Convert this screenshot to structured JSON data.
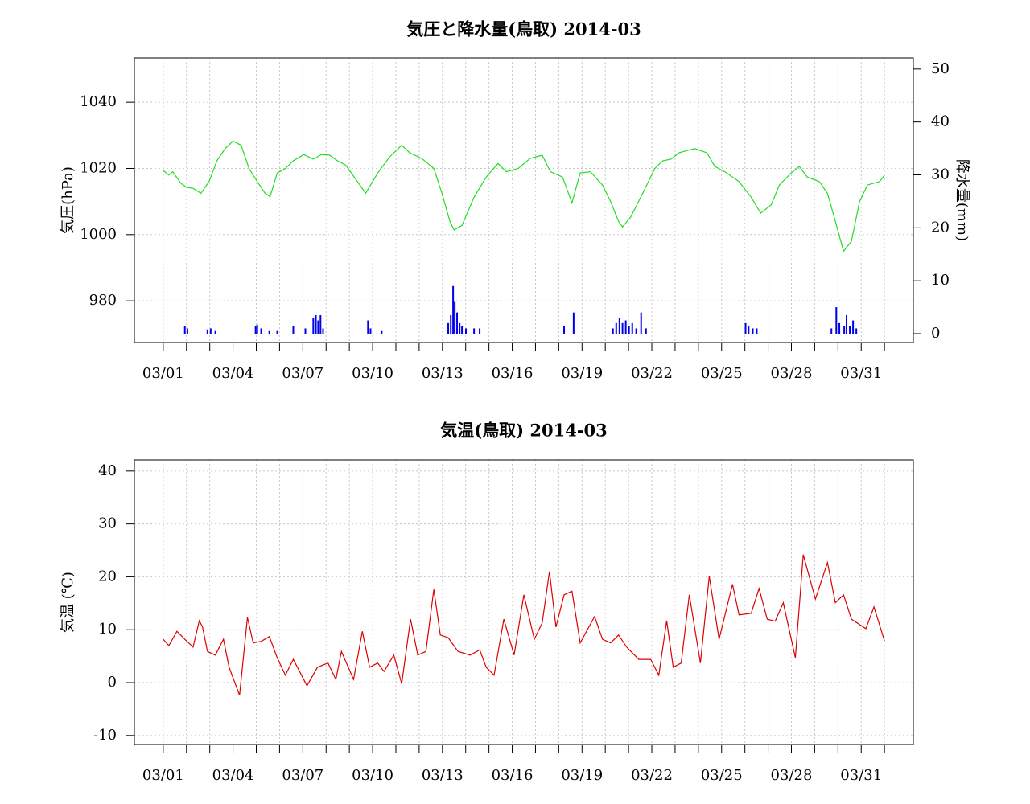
{
  "chart_data": [
    {
      "type": "line",
      "title": "気圧と降水量(鳥取) 2014-03",
      "ylabel": "気圧(hPa)",
      "y2label": "降水量(mm)",
      "xlim": [
        -0.24,
        33.24
      ],
      "xticks": [
        {
          "value": 1,
          "label": "03/01"
        },
        {
          "value": 4,
          "label": "03/04"
        },
        {
          "value": 7,
          "label": "03/07"
        },
        {
          "value": 10,
          "label": "03/10"
        },
        {
          "value": 13,
          "label": "03/13"
        },
        {
          "value": 16,
          "label": "03/16"
        },
        {
          "value": 19,
          "label": "03/19"
        },
        {
          "value": 22,
          "label": "03/22"
        },
        {
          "value": 25,
          "label": "03/25"
        },
        {
          "value": 28,
          "label": "03/28"
        },
        {
          "value": 31,
          "label": "03/31"
        }
      ],
      "xminor_ticks": [
        1,
        2,
        3,
        4,
        5,
        6,
        7,
        8,
        9,
        10,
        11,
        12,
        13,
        14,
        15,
        16,
        17,
        18,
        19,
        20,
        21,
        22,
        23,
        24,
        25,
        26,
        27,
        28,
        29,
        30,
        31,
        32
      ],
      "ylim": [
        967.4,
        1053.4
      ],
      "yticks": [
        980,
        1000,
        1020,
        1040
      ],
      "y2lim": [
        -1.67,
        52.1
      ],
      "y2ticks": [
        0,
        10,
        20,
        30,
        40,
        50
      ],
      "grid": true,
      "series": [
        {
          "name": "気圧",
          "color": "#22dd22",
          "x": [
            1.0,
            1.24,
            1.41,
            1.76,
            2.0,
            2.28,
            2.62,
            2.97,
            3.31,
            3.66,
            4.0,
            4.35,
            4.69,
            5.04,
            5.38,
            5.59,
            5.9,
            6.25,
            6.59,
            7.04,
            7.45,
            7.8,
            8.15,
            8.49,
            8.84,
            9.35,
            9.7,
            10.22,
            10.73,
            11.25,
            11.6,
            12.11,
            12.63,
            12.98,
            13.32,
            13.5,
            13.84,
            14.36,
            14.88,
            15.39,
            15.74,
            16.26,
            16.77,
            17.29,
            17.64,
            18.16,
            18.57,
            18.92,
            19.36,
            19.88,
            20.23,
            20.57,
            20.74,
            21.09,
            21.61,
            22.13,
            22.47,
            22.82,
            23.16,
            23.51,
            23.85,
            24.37,
            24.71,
            25.23,
            25.75,
            26.27,
            26.68,
            27.13,
            27.48,
            27.99,
            28.34,
            28.68,
            29.2,
            29.55,
            29.89,
            30.24,
            30.58,
            30.93,
            31.27,
            31.79,
            32.0
          ],
          "values": [
            1019.4,
            1018,
            1019,
            1015.5,
            1014.3,
            1014,
            1012.5,
            1016,
            1022.3,
            1026,
            1028.3,
            1027,
            1020,
            1016,
            1012.5,
            1011.5,
            1018.6,
            1020,
            1022.3,
            1024.2,
            1022.8,
            1024.2,
            1024,
            1022.3,
            1021,
            1016,
            1012.5,
            1018.6,
            1023.5,
            1027,
            1024.7,
            1023,
            1020,
            1012.5,
            1004,
            1001.4,
            1002.8,
            1011.3,
            1017.4,
            1021.5,
            1019,
            1020,
            1023,
            1024,
            1019,
            1017.4,
            1009.6,
            1018.6,
            1019,
            1015,
            1010,
            1004,
            1002.3,
            1005.3,
            1012.5,
            1020,
            1022.3,
            1022.8,
            1024.7,
            1025.4,
            1026,
            1024.7,
            1020.6,
            1018.6,
            1016,
            1011.3,
            1006.5,
            1009,
            1015,
            1018.6,
            1020.6,
            1017.4,
            1016,
            1012.5,
            1004,
            995,
            998,
            1010,
            1015,
            1016,
            1017.9
          ]
        },
        {
          "name": "降水量",
          "type": "bar",
          "axis": "y2",
          "color": "#0000ee",
          "x": [
            1.93,
            2.04,
            2.9,
            3.04,
            3.24,
            4.97,
            5.04,
            5.21,
            5.56,
            5.9,
            6.59,
            7.11,
            7.45,
            7.56,
            7.66,
            7.76,
            7.87,
            9.8,
            9.91,
            10.39,
            13.25,
            13.36,
            13.46,
            13.53,
            13.63,
            13.74,
            13.84,
            14.01,
            14.36,
            14.6,
            18.23,
            18.64,
            20.33,
            20.47,
            20.61,
            20.74,
            20.88,
            21.02,
            21.16,
            21.33,
            21.54,
            21.75,
            26.03,
            26.16,
            26.34,
            26.51,
            29.72,
            29.93,
            30.06,
            30.27,
            30.37,
            30.51,
            30.65,
            30.79
          ],
          "values": [
            1.5,
            1.0,
            0.8,
            1.0,
            0.5,
            1.5,
            1.7,
            1.0,
            0.5,
            0.5,
            1.5,
            1.0,
            3.0,
            3.5,
            2.5,
            3.5,
            1.0,
            2.5,
            1.0,
            0.5,
            2.0,
            3.5,
            9.0,
            6.0,
            4.0,
            2.0,
            1.5,
            1.0,
            1.0,
            1.0,
            1.5,
            4.0,
            1.0,
            2.0,
            3.0,
            2.0,
            2.5,
            1.5,
            2.0,
            1.0,
            4.0,
            1.0,
            2.0,
            1.5,
            1.0,
            1.0,
            1.0,
            5.0,
            2.0,
            1.5,
            3.5,
            1.5,
            2.5,
            1.0
          ]
        }
      ]
    },
    {
      "type": "line",
      "title": "気温(鳥取) 2014-03",
      "ylabel": "気温 (℃)",
      "xlim": [
        -0.24,
        33.24
      ],
      "xticks": [
        {
          "value": 1,
          "label": "03/01"
        },
        {
          "value": 4,
          "label": "03/04"
        },
        {
          "value": 7,
          "label": "03/07"
        },
        {
          "value": 10,
          "label": "03/10"
        },
        {
          "value": 13,
          "label": "03/13"
        },
        {
          "value": 16,
          "label": "03/16"
        },
        {
          "value": 19,
          "label": "03/19"
        },
        {
          "value": 22,
          "label": "03/22"
        },
        {
          "value": 25,
          "label": "03/25"
        },
        {
          "value": 28,
          "label": "03/28"
        },
        {
          "value": 31,
          "label": "03/31"
        }
      ],
      "xminor_ticks": [
        1,
        2,
        3,
        4,
        5,
        6,
        7,
        8,
        9,
        10,
        11,
        12,
        13,
        14,
        15,
        16,
        17,
        18,
        19,
        20,
        21,
        22,
        23,
        24,
        25,
        26,
        27,
        28,
        29,
        30,
        31,
        32
      ],
      "ylim": [
        -11.7,
        42.1
      ],
      "yticks": [
        -10,
        0,
        10,
        20,
        30,
        40
      ],
      "grid": true,
      "series": [
        {
          "name": "気温",
          "color": "#dd0000",
          "x": [
            1.0,
            1.24,
            1.59,
            1.93,
            2.28,
            2.55,
            2.69,
            2.9,
            3.24,
            3.59,
            3.83,
            4.28,
            4.62,
            4.87,
            5.21,
            5.56,
            5.9,
            6.25,
            6.59,
            7.18,
            7.63,
            8.08,
            8.42,
            8.66,
            9.18,
            9.56,
            9.87,
            10.22,
            10.49,
            10.91,
            11.25,
            11.63,
            11.94,
            12.29,
            12.63,
            12.91,
            13.25,
            13.67,
            14.19,
            14.6,
            14.88,
            15.22,
            15.64,
            16.08,
            16.5,
            16.95,
            17.29,
            17.6,
            17.88,
            18.23,
            18.57,
            18.92,
            19.54,
            19.88,
            20.23,
            20.57,
            20.92,
            21.44,
            21.95,
            22.3,
            22.64,
            22.92,
            23.26,
            23.61,
            24.09,
            24.47,
            24.89,
            25.47,
            25.75,
            26.27,
            26.61,
            26.96,
            27.3,
            27.65,
            28.17,
            28.51,
            29.03,
            29.55,
            29.89,
            30.24,
            30.58,
            31.2,
            31.55,
            32.0
          ],
          "values": [
            8.2,
            7.0,
            9.7,
            8.2,
            6.7,
            11.7,
            10.5,
            5.9,
            5.2,
            8.2,
            2.9,
            -2.4,
            12.3,
            7.5,
            7.8,
            8.7,
            4.7,
            1.4,
            4.4,
            -0.6,
            2.9,
            3.7,
            0.6,
            5.9,
            0.6,
            9.7,
            2.9,
            3.7,
            2.1,
            5.2,
            -0.2,
            12.0,
            5.2,
            5.9,
            17.6,
            9.0,
            8.5,
            5.9,
            5.2,
            6.2,
            2.9,
            1.4,
            12.0,
            5.2,
            16.6,
            8.2,
            11.3,
            21.0,
            10.5,
            16.6,
            17.3,
            7.5,
            12.5,
            8.2,
            7.5,
            9.0,
            6.7,
            4.4,
            4.4,
            1.4,
            11.7,
            2.9,
            3.7,
            16.6,
            3.7,
            20.1,
            8.2,
            18.6,
            12.8,
            13.1,
            17.8,
            12.0,
            11.6,
            15.1,
            4.7,
            24.2,
            15.8,
            22.7,
            15.1,
            16.6,
            12.0,
            10.2,
            14.3,
            7.9
          ]
        }
      ]
    }
  ]
}
